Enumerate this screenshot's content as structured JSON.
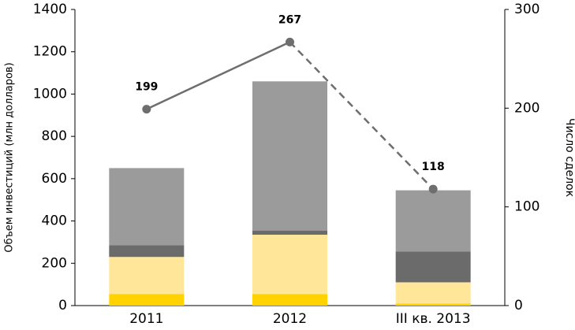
{
  "chart_data": {
    "type": "bar",
    "y_label": "Объем инвестиций (млн долларов)",
    "y2_label": "Число сделок",
    "categories": [
      "2011",
      "2012",
      "III кв. 2013"
    ],
    "stacked": true,
    "series": [
      {
        "color": "#ffd200",
        "values": [
          55,
          55,
          10
        ]
      },
      {
        "color": "#ffe699",
        "values": [
          175,
          280,
          100
        ]
      },
      {
        "color": "#6b6b6b",
        "values": [
          55,
          20,
          145
        ]
      },
      {
        "color": "#9b9b9b",
        "values": [
          365,
          705,
          290
        ]
      },
      {
        "type": "line",
        "axis": "y2",
        "color": "#6e6e6e",
        "values": [
          199,
          267,
          118
        ],
        "segment_styles": [
          "solid",
          "dashed"
        ]
      }
    ],
    "ylim": [
      0,
      1400
    ],
    "yticks": [
      0,
      200,
      400,
      600,
      800,
      1000,
      1200,
      1400
    ],
    "y2lim": [
      0,
      300
    ],
    "y2ticks": [
      0,
      100,
      200,
      300
    ]
  }
}
